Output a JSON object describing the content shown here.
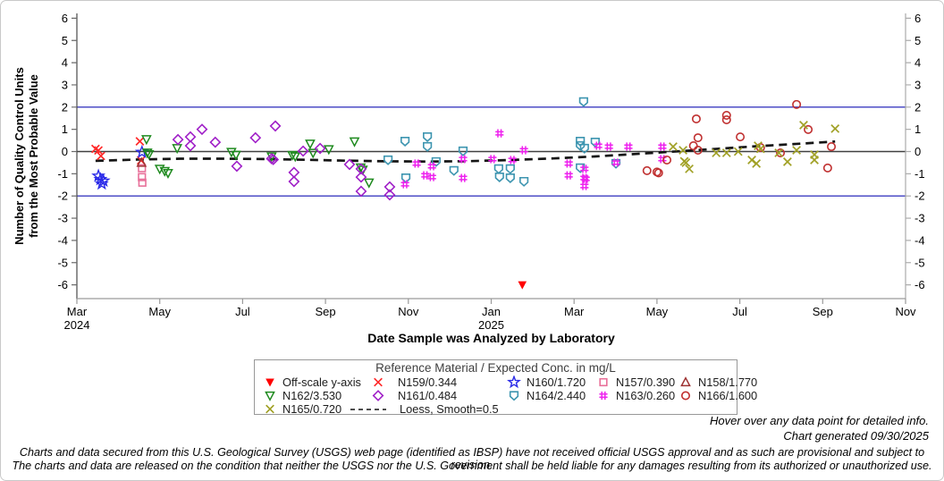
{
  "chart_data": {
    "type": "scatter",
    "ylabel_lines": [
      "Number of Quality Control Units",
      "from the Most Probable Value"
    ],
    "xlabel": "Date Sample was Analyzed by Laboratory",
    "ylim": [
      -6,
      6
    ],
    "ytick_step": 1,
    "x_unit": "months since Mar 2024; 0 = Mar 2024 tick, 20 = Nov 2025 tick",
    "xticks": [
      {
        "m": 0,
        "label": "Mar",
        "year": "2024"
      },
      {
        "m": 2,
        "label": "May"
      },
      {
        "m": 4,
        "label": "Jul"
      },
      {
        "m": 6,
        "label": "Sep"
      },
      {
        "m": 8,
        "label": "Nov"
      },
      {
        "m": 10,
        "label": "Jan",
        "year": "2025"
      },
      {
        "m": 12,
        "label": "Mar"
      },
      {
        "m": 14,
        "label": "May"
      },
      {
        "m": 16,
        "label": "Jul"
      },
      {
        "m": 18,
        "label": "Sep"
      },
      {
        "m": 20,
        "label": "Nov"
      }
    ],
    "grid": false,
    "reference_lines": [
      {
        "value": 2,
        "color": "#3C3CC0"
      },
      {
        "value": 0,
        "color": "#404040"
      },
      {
        "value": -2,
        "color": "#3C3CC0"
      }
    ],
    "legend": {
      "title": "Reference Material / Expected Conc. in mg/L",
      "position": "bottom",
      "layout_rows": [
        [
          "offscale",
          "n159",
          "n160",
          "n157",
          "n158"
        ],
        [
          "n162",
          "n161",
          "n164",
          "n163",
          "n166"
        ],
        [
          "n165",
          "loess"
        ]
      ]
    },
    "series": [
      {
        "id": "offscale",
        "label": "Off-scale y-axis",
        "marker": "triangle-down-filled",
        "color": "#FF0000",
        "points": [
          [
            10.75,
            -6
          ]
        ]
      },
      {
        "id": "n159",
        "label": "N159/0.344",
        "marker": "x",
        "color": "#FF2A2A",
        "points": [
          [
            0.45,
            0.12
          ],
          [
            0.52,
            0.05
          ],
          [
            0.58,
            -0.2
          ],
          [
            1.52,
            0.46
          ],
          [
            1.55,
            -0.4
          ]
        ]
      },
      {
        "id": "n160",
        "label": "N160/1.720",
        "marker": "star",
        "color": "#2B2BE8",
        "points": [
          [
            0.52,
            -1.1
          ],
          [
            0.57,
            -1.25
          ],
          [
            0.6,
            -1.45
          ],
          [
            0.64,
            -1.32
          ],
          [
            1.57,
            -0.03
          ]
        ]
      },
      {
        "id": "n157",
        "label": "N157/0.390",
        "marker": "square",
        "color": "#E8709A",
        "points": [
          [
            1.57,
            -0.75
          ],
          [
            1.57,
            -1.15
          ],
          [
            1.58,
            -1.4
          ]
        ]
      },
      {
        "id": "n158",
        "label": "N158/1.770",
        "marker": "triangle-up",
        "color": "#9E3232",
        "points": [
          [
            1.56,
            -0.5
          ]
        ]
      },
      {
        "id": "n162",
        "label": "N162/3.530",
        "marker": "triangle-down",
        "color": "#1F8A1F",
        "points": [
          [
            1.68,
            0.55
          ],
          [
            1.7,
            -0.05
          ],
          [
            1.74,
            -0.12
          ],
          [
            2.0,
            -0.78
          ],
          [
            2.12,
            -0.88
          ],
          [
            2.2,
            -0.97
          ],
          [
            2.42,
            0.15
          ],
          [
            3.73,
            -0.02
          ],
          [
            3.84,
            -0.15
          ],
          [
            4.7,
            -0.22
          ],
          [
            5.2,
            -0.16
          ],
          [
            5.27,
            -0.22
          ],
          [
            5.63,
            0.35
          ],
          [
            5.7,
            -0.06
          ],
          [
            6.08,
            0.1
          ],
          [
            6.7,
            0.45
          ],
          [
            6.85,
            -0.72
          ],
          [
            6.9,
            -0.82
          ],
          [
            7.05,
            -1.4
          ]
        ]
      },
      {
        "id": "n161",
        "label": "N161/0.484",
        "marker": "diamond",
        "color": "#A020C8",
        "points": [
          [
            2.44,
            0.54
          ],
          [
            2.74,
            0.66
          ],
          [
            2.74,
            0.26
          ],
          [
            3.02,
            1.0
          ],
          [
            3.34,
            0.42
          ],
          [
            3.86,
            -0.66
          ],
          [
            4.31,
            0.62
          ],
          [
            4.7,
            -0.32
          ],
          [
            4.74,
            -0.36
          ],
          [
            4.79,
            1.15
          ],
          [
            5.24,
            -0.94
          ],
          [
            5.24,
            -1.35
          ],
          [
            5.46,
            0.02
          ],
          [
            5.87,
            0.14
          ],
          [
            6.58,
            -0.58
          ],
          [
            6.86,
            -0.78
          ],
          [
            6.86,
            -1.15
          ],
          [
            6.86,
            -1.79
          ],
          [
            7.55,
            -1.59
          ],
          [
            7.55,
            -1.95
          ]
        ]
      },
      {
        "id": "n164",
        "label": "N164/2.440",
        "marker": "shield-down",
        "color": "#3D95B0",
        "points": [
          [
            7.51,
            -0.38
          ],
          [
            7.92,
            0.46
          ],
          [
            7.94,
            -1.19
          ],
          [
            8.46,
            0.66
          ],
          [
            8.46,
            0.22
          ],
          [
            8.67,
            -0.46
          ],
          [
            9.1,
            -0.86
          ],
          [
            9.32,
            0.02
          ],
          [
            10.18,
            -0.78
          ],
          [
            10.2,
            -1.15
          ],
          [
            10.46,
            -0.78
          ],
          [
            10.46,
            -1.19
          ],
          [
            10.79,
            -1.35
          ],
          [
            12.15,
            0.46
          ],
          [
            12.15,
            0.26
          ],
          [
            12.15,
            -0.74
          ],
          [
            12.23,
            2.24
          ],
          [
            12.25,
            0.14
          ],
          [
            12.51,
            0.42
          ],
          [
            13.01,
            -0.54
          ]
        ]
      },
      {
        "id": "n163",
        "label": "N163/0.260",
        "marker": "hash",
        "color": "#EE22EE",
        "points": [
          [
            7.92,
            -1.47
          ],
          [
            8.2,
            -0.54
          ],
          [
            8.41,
            -1.07
          ],
          [
            8.57,
            -0.66
          ],
          [
            8.57,
            -1.15
          ],
          [
            9.32,
            -0.34
          ],
          [
            9.32,
            -1.19
          ],
          [
            10.03,
            -0.34
          ],
          [
            10.2,
            0.82
          ],
          [
            10.51,
            -0.38
          ],
          [
            10.79,
            0.06
          ],
          [
            11.87,
            -0.54
          ],
          [
            11.87,
            -1.07
          ],
          [
            12.25,
            -0.78
          ],
          [
            12.25,
            -1.19
          ],
          [
            12.28,
            -1.23
          ],
          [
            12.25,
            -1.55
          ],
          [
            12.58,
            0.26
          ],
          [
            12.84,
            0.22
          ],
          [
            13.01,
            -0.5
          ],
          [
            13.31,
            0.22
          ],
          [
            14.13,
            0.22
          ],
          [
            14.13,
            -0.34
          ]
        ]
      },
      {
        "id": "n166",
        "label": "N166/1.600",
        "marker": "circle",
        "color": "#C03030",
        "points": [
          [
            13.76,
            -0.86
          ],
          [
            14.0,
            -0.92
          ],
          [
            14.04,
            -0.96
          ],
          [
            14.24,
            -0.38
          ],
          [
            14.88,
            0.26
          ],
          [
            14.95,
            1.47
          ],
          [
            14.99,
            0.62
          ],
          [
            14.99,
            0.06
          ],
          [
            15.68,
            1.63
          ],
          [
            15.68,
            1.43
          ],
          [
            16.01,
            0.66
          ],
          [
            16.5,
            0.18
          ],
          [
            16.98,
            -0.06
          ],
          [
            17.37,
            2.12
          ],
          [
            17.65,
            0.99
          ],
          [
            18.12,
            -0.74
          ],
          [
            18.21,
            0.22
          ]
        ]
      },
      {
        "id": "n165",
        "label": "N165/0.720",
        "marker": "x",
        "color": "#A0A024",
        "points": [
          [
            14.39,
            0.22
          ],
          [
            14.63,
            0.06
          ],
          [
            14.66,
            -0.44
          ],
          [
            14.7,
            -0.5
          ],
          [
            14.78,
            -0.78
          ],
          [
            15.43,
            -0.06
          ],
          [
            15.68,
            -0.06
          ],
          [
            15.96,
            0.0
          ],
          [
            16.29,
            -0.38
          ],
          [
            16.4,
            -0.54
          ],
          [
            16.44,
            0.26
          ],
          [
            16.5,
            0.12
          ],
          [
            16.94,
            -0.06
          ],
          [
            17.15,
            -0.46
          ],
          [
            17.37,
            0.06
          ],
          [
            17.54,
            1.19
          ],
          [
            17.8,
            -0.14
          ],
          [
            17.8,
            -0.38
          ],
          [
            18.3,
            1.03
          ]
        ]
      },
      {
        "id": "loess",
        "label": "Loess, Smooth=0.5",
        "marker": "dashed-line",
        "color": "#151515",
        "points": [
          [
            0.45,
            -0.42
          ],
          [
            1.5,
            -0.36
          ],
          [
            2.5,
            -0.32
          ],
          [
            3.5,
            -0.32
          ],
          [
            4.5,
            -0.34
          ],
          [
            5.5,
            -0.37
          ],
          [
            6.5,
            -0.41
          ],
          [
            7.5,
            -0.44
          ],
          [
            8.5,
            -0.45
          ],
          [
            9.5,
            -0.43
          ],
          [
            10.5,
            -0.38
          ],
          [
            11.5,
            -0.31
          ],
          [
            12.5,
            -0.22
          ],
          [
            13.5,
            -0.11
          ],
          [
            14.5,
            0.01
          ],
          [
            15.5,
            0.13
          ],
          [
            16.5,
            0.25
          ],
          [
            17.5,
            0.36
          ],
          [
            18.3,
            0.45
          ]
        ]
      }
    ]
  },
  "footer": {
    "hover": "Hover over any data point for detailed info.",
    "generated": "Chart generated 09/30/2025",
    "disclaimer1": "Charts and data secured from this U.S. Geological Survey (USGS) web page (identified as IBSP) have not received official USGS approval and as such are provisional and subject to revision.",
    "disclaimer2": "The charts and data are released on the condition that neither the USGS nor the U.S. Government shall be held liable for any damages resulting from its authorized or unauthorized use."
  }
}
